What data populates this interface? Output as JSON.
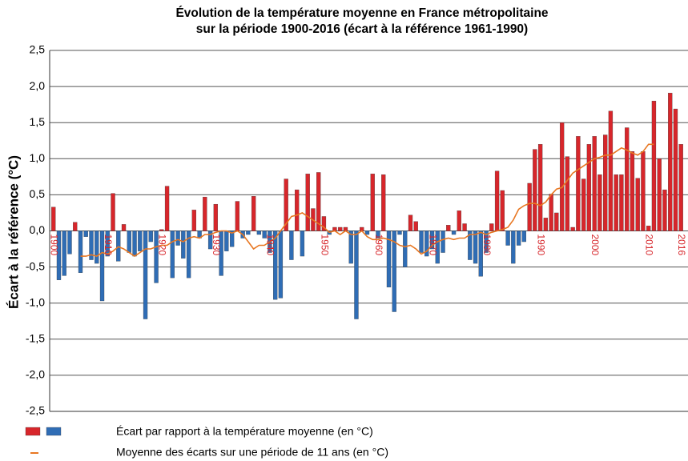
{
  "chart_data": {
    "type": "bar",
    "title": [
      "Évolution de la température moyenne en France métropolitaine",
      "sur la période 1900-2016 (écart à la référence 1961-1990)"
    ],
    "y_label": "Écart à la référence (°C)",
    "x": [
      1900,
      1901,
      1902,
      1903,
      1904,
      1905,
      1906,
      1907,
      1908,
      1909,
      1910,
      1911,
      1912,
      1913,
      1914,
      1915,
      1916,
      1917,
      1918,
      1919,
      1920,
      1921,
      1922,
      1923,
      1924,
      1925,
      1926,
      1927,
      1928,
      1929,
      1930,
      1931,
      1932,
      1933,
      1934,
      1935,
      1936,
      1937,
      1938,
      1939,
      1940,
      1941,
      1942,
      1943,
      1944,
      1945,
      1946,
      1947,
      1948,
      1949,
      1950,
      1951,
      1952,
      1953,
      1954,
      1955,
      1956,
      1957,
      1958,
      1959,
      1960,
      1961,
      1962,
      1963,
      1964,
      1965,
      1966,
      1967,
      1968,
      1969,
      1970,
      1971,
      1972,
      1973,
      1974,
      1975,
      1976,
      1977,
      1978,
      1979,
      1980,
      1981,
      1982,
      1983,
      1984,
      1985,
      1986,
      1987,
      1988,
      1989,
      1990,
      1991,
      1992,
      1993,
      1994,
      1995,
      1996,
      1997,
      1998,
      1999,
      2000,
      2001,
      2002,
      2003,
      2004,
      2005,
      2006,
      2007,
      2008,
      2009,
      2010,
      2011,
      2012,
      2013,
      2014,
      2015,
      2016
    ],
    "series": [
      {
        "name": "Écart par rapport à la température moyenne (en °C)",
        "type": "bar",
        "color": "#d7262b",
        "negative_color": "#2f6db5",
        "values": [
          0.33,
          -0.68,
          -0.62,
          -0.32,
          0.12,
          -0.58,
          -0.08,
          -0.4,
          -0.45,
          -0.97,
          -0.35,
          0.52,
          -0.42,
          0.09,
          -0.3,
          -0.35,
          -0.28,
          -1.22,
          -0.15,
          -0.72,
          0.02,
          0.62,
          -0.65,
          -0.2,
          -0.38,
          -0.65,
          0.29,
          -0.1,
          0.47,
          -0.25,
          0.37,
          -0.62,
          -0.28,
          -0.22,
          0.41,
          -0.1,
          -0.05,
          0.48,
          -0.05,
          -0.1,
          -0.3,
          -0.95,
          -0.93,
          0.72,
          -0.4,
          0.57,
          -0.35,
          0.79,
          0.31,
          0.81,
          0.2,
          -0.05,
          0.05,
          0.05,
          0.05,
          -0.45,
          -1.22,
          0.05,
          -0.05,
          0.79,
          -0.1,
          0.78,
          -0.78,
          -1.12,
          -0.05,
          -0.5,
          0.22,
          0.13,
          -0.3,
          -0.35,
          -0.25,
          -0.45,
          -0.3,
          0.08,
          -0.05,
          0.28,
          0.1,
          -0.4,
          -0.45,
          -0.63,
          -0.3,
          0.1,
          0.83,
          0.56,
          -0.2,
          -0.45,
          -0.2,
          -0.15,
          0.66,
          1.13,
          1.2,
          0.18,
          0.51,
          0.25,
          1.5,
          1.03,
          0.05,
          1.31,
          0.72,
          1.2,
          1.31,
          0.78,
          1.33,
          1.66,
          0.78,
          0.78,
          1.43,
          1.1,
          0.73,
          1.1,
          0.07,
          1.8,
          1.0,
          0.57,
          1.91,
          1.69,
          1.2
        ]
      },
      {
        "name": "Moyenne des écarts sur une période de 11 ans (en °C)",
        "type": "line",
        "color": "#e87722",
        "values": [
          null,
          null,
          null,
          null,
          null,
          -0.35,
          -0.35,
          -0.33,
          -0.35,
          -0.3,
          -0.32,
          -0.28,
          -0.22,
          -0.25,
          -0.3,
          -0.35,
          -0.3,
          -0.25,
          -0.25,
          -0.22,
          -0.2,
          -0.2,
          -0.15,
          -0.12,
          -0.15,
          -0.1,
          -0.08,
          -0.1,
          -0.05,
          -0.05,
          -0.02,
          0,
          0,
          -0.03,
          0,
          -0.05,
          -0.15,
          -0.25,
          -0.2,
          -0.2,
          -0.15,
          -0.1,
          0,
          0.1,
          0.2,
          0.22,
          0.25,
          0.2,
          0.15,
          0.1,
          0.05,
          -0.02,
          0,
          -0.05,
          0,
          -0.05,
          -0.05,
          0,
          -0.08,
          -0.12,
          -0.12,
          -0.1,
          -0.12,
          -0.15,
          -0.2,
          -0.22,
          -0.2,
          -0.25,
          -0.32,
          -0.28,
          -0.2,
          -0.15,
          -0.12,
          -0.1,
          -0.12,
          -0.1,
          -0.1,
          -0.05,
          -0.05,
          -0.02,
          -0.05,
          -0.02,
          0,
          0.02,
          0.05,
          0.15,
          0.3,
          0.35,
          0.38,
          0.38,
          0.35,
          0.4,
          0.5,
          0.58,
          0.6,
          0.7,
          0.8,
          0.85,
          0.9,
          0.95,
          1.0,
          1.02,
          1.05,
          1.05,
          1.1,
          1.15,
          1.12,
          1.08,
          1.05,
          1.1,
          1.2,
          1.2,
          null,
          null,
          null,
          null,
          null
        ]
      }
    ],
    "xlim": [
      1899.3,
      2017.3
    ],
    "xticks": [
      1900,
      1910,
      1920,
      1930,
      1940,
      1950,
      1960,
      1970,
      1980,
      1990,
      2000,
      2010,
      2016
    ],
    "ylim": [
      -2.5,
      2.5
    ],
    "yticks": [
      {
        "value": 2.5,
        "label": "2,5"
      },
      {
        "value": 2.0,
        "label": "2,0"
      },
      {
        "value": 1.5,
        "label": "1,5"
      },
      {
        "value": 1.0,
        "label": "1,0"
      },
      {
        "value": 0.5,
        "label": "0,5"
      },
      {
        "value": 0,
        "label": "0,0"
      },
      {
        "value": -0.5,
        "label": "-0,5"
      },
      {
        "value": -1.0,
        "label": "-1,0"
      },
      {
        "value": -1.5,
        "label": "-1,5"
      },
      {
        "value": -2.0,
        "label": "-2,0"
      },
      {
        "value": -2.5,
        "label": "-2,5"
      }
    ],
    "xtick_color": "#d7262b",
    "grid": true
  }
}
